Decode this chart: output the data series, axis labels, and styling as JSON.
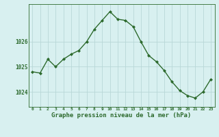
{
  "x": [
    0,
    1,
    2,
    3,
    4,
    5,
    6,
    7,
    8,
    9,
    10,
    11,
    12,
    13,
    14,
    15,
    16,
    17,
    18,
    19,
    20,
    21,
    22,
    23
  ],
  "y": [
    1024.8,
    1024.75,
    1025.3,
    1025.0,
    1025.3,
    1025.5,
    1025.65,
    1026.0,
    1026.5,
    1026.85,
    1027.2,
    1026.9,
    1026.85,
    1026.6,
    1026.0,
    1025.45,
    1025.2,
    1024.85,
    1024.4,
    1024.05,
    1023.85,
    1023.75,
    1024.0,
    1024.5
  ],
  "line_color": "#2d6a2d",
  "marker": "D",
  "marker_size": 2,
  "bg_color": "#d8f0f0",
  "grid_color": "#b8d8d8",
  "axis_color": "#2d6a2d",
  "tick_label_color": "#2d6a2d",
  "xlabel": "Graphe pression niveau de la mer (hPa)",
  "xlabel_fontsize": 6.5,
  "yticks": [
    1024,
    1025,
    1026
  ],
  "ylim": [
    1023.4,
    1027.5
  ],
  "xlim": [
    -0.5,
    23.5
  ],
  "xticks": [
    0,
    1,
    2,
    3,
    4,
    5,
    6,
    7,
    8,
    9,
    10,
    11,
    12,
    13,
    14,
    15,
    16,
    17,
    18,
    19,
    20,
    21,
    22,
    23
  ],
  "xtick_labels": [
    "0",
    "1",
    "2",
    "3",
    "4",
    "5",
    "6",
    "7",
    "8",
    "9",
    "10",
    "11",
    "12",
    "13",
    "14",
    "15",
    "16",
    "17",
    "18",
    "19",
    "20",
    "21",
    "22",
    "23"
  ]
}
